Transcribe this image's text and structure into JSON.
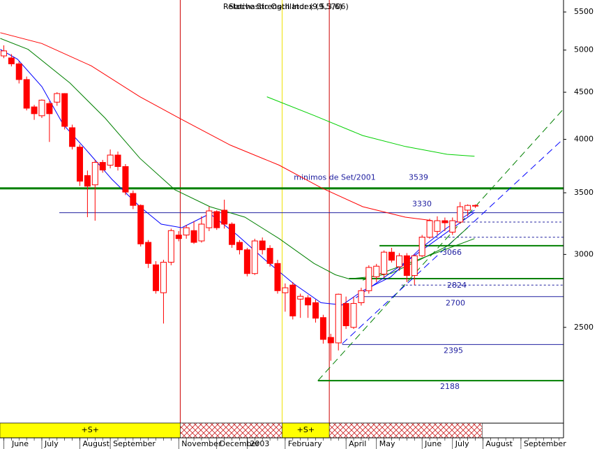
{
  "chart_data": {
    "type": "candlestick",
    "title": "Relative Strength Index (9.5706)",
    "subtitle": "Stochastic Oscillator (9.5,3,6)",
    "log_scale": true,
    "xlim": [
      -0.5,
      73.6
    ],
    "ylim": [
      1971,
      5667
    ],
    "yticks": [
      2500,
      3000,
      3500,
      4000,
      4500,
      5000,
      5500
    ],
    "xticks": [
      {
        "value": 0,
        "label": "June"
      },
      {
        "value": 5,
        "label": "July"
      },
      {
        "value": 10,
        "label": "August"
      },
      {
        "value": 14,
        "label": "September"
      },
      {
        "value": 23,
        "label": "November"
      },
      {
        "value": 28,
        "label": "December"
      },
      {
        "value": 32,
        "label": "2003"
      },
      {
        "value": 37,
        "label": "February"
      },
      {
        "value": 45,
        "label": "April"
      },
      {
        "value": 49,
        "label": "May"
      },
      {
        "value": 55,
        "label": "June"
      },
      {
        "value": 59,
        "label": "July"
      },
      {
        "value": 63,
        "label": "August"
      },
      {
        "value": 68,
        "label": "September"
      }
    ],
    "up_color": "#ffffff",
    "down_color": "#ff0000",
    "wick_color": "#ff0000",
    "candles": {
      "open": [
        4928,
        4903,
        4831,
        4645,
        4338,
        4243,
        4375,
        4390,
        4485,
        4118,
        3923,
        3654,
        3570,
        3776,
        3750,
        3846,
        3737,
        3494,
        3391,
        3092,
        2923,
        2726,
        2942,
        3149,
        3149,
        3184,
        3103,
        3207,
        3339,
        3351,
        3236,
        3092,
        3035,
        2860,
        3103,
        3046,
        2933,
        2726,
        2779,
        2683,
        2692,
        2659,
        2562,
        2438,
        2405,
        2654,
        2500,
        2659,
        2740,
        2837,
        2856,
        3017,
        2909,
        2990,
        2846,
        2990,
        3132,
        3178,
        3264,
        3172,
        3253,
        3351,
        3391
      ],
      "high": [
        5060,
        4950,
        4860,
        4680,
        4360,
        4420,
        4400,
        4500,
        4490,
        4150,
        3950,
        3700,
        3800,
        3800,
        3900,
        3880,
        3760,
        3520,
        3400,
        3110,
        2950,
        2960,
        3200,
        3180,
        3230,
        3260,
        3300,
        3380,
        3350,
        3440,
        3250,
        3110,
        3050,
        3120,
        3130,
        3070,
        2960,
        2790,
        2800,
        2720,
        2710,
        2680,
        2580,
        2460,
        2720,
        2700,
        2700,
        2760,
        2920,
        2930,
        3030,
        3050,
        3010,
        3010,
        3000,
        3150,
        3280,
        3300,
        3290,
        3290,
        3420,
        3400,
        3400
      ],
      "low": [
        4900,
        4800,
        4600,
        4300,
        4200,
        4220,
        3974,
        4350,
        4100,
        3900,
        3560,
        3293,
        3264,
        3680,
        3720,
        3700,
        3480,
        3360,
        3060,
        2900,
        2720,
        2524,
        2920,
        3100,
        3120,
        3080,
        3090,
        3180,
        3190,
        3200,
        3050,
        3000,
        2840,
        2850,
        3000,
        2910,
        2720,
        2600,
        2550,
        2560,
        2560,
        2530,
        2400,
        2300,
        2360,
        2490,
        2490,
        2640,
        2720,
        2800,
        2830,
        2940,
        2880,
        2800,
        2780,
        2980,
        3120,
        3150,
        3180,
        3150,
        3240,
        3300,
        3370
      ],
      "close": [
        4990,
        4831,
        4645,
        4324,
        4265,
        4412,
        4265,
        4485,
        4132,
        3929,
        3603,
        3558,
        3776,
        3705,
        3846,
        3737,
        3506,
        3391,
        3080,
        2933,
        2740,
        2942,
        3184,
        3121,
        3207,
        3092,
        3236,
        3345,
        3207,
        3236,
        3075,
        3035,
        2860,
        3103,
        3035,
        2933,
        2740,
        2760,
        2572,
        2702,
        2644,
        2558,
        2426,
        2405,
        2716,
        2510,
        2654,
        2740,
        2904,
        2913,
        3017,
        2957,
        2990,
        2846,
        2990,
        3132,
        3264,
        3264,
        3247,
        3264,
        3380,
        3391,
        3391
      ]
    },
    "lines": [
      {
        "color": "#ff0000",
        "x": [
          -0.46,
          5,
          11.5,
          17.9,
          23.4,
          29.8,
          36.2,
          41.7,
          47.2,
          52.8,
          56.4
        ],
        "values": [
          5222,
          5083,
          4807,
          4449,
          4204,
          3942,
          3750,
          3545,
          3380,
          3293,
          3264
        ]
      },
      {
        "color": "#008000",
        "x": [
          -0.46,
          3.2,
          8.7,
          13.3,
          17.9,
          22.5,
          27.1,
          31.7,
          36.2,
          40.8,
          43.6,
          45.4,
          48.2,
          50.9,
          54.6,
          58.3,
          61
        ],
        "values": [
          5148,
          5009,
          4605,
          4220,
          3815,
          3526,
          3380,
          3293,
          3121,
          2933,
          2851,
          2822,
          2837,
          2860,
          2957,
          3063,
          3207
        ]
      },
      {
        "color": "#0000ff",
        "x": [
          -0.46,
          1.8,
          5,
          7.8,
          10.6,
          14.2,
          17.9,
          20.7,
          23.4,
          27.1,
          30.7,
          34.4,
          38.1,
          41.7,
          44.5,
          47.2,
          50.9,
          54.6,
          58.3,
          61.9
        ],
        "values": [
          5009,
          4887,
          4564,
          4153,
          3916,
          3621,
          3380,
          3236,
          3207,
          3322,
          3149,
          2957,
          2789,
          2659,
          2644,
          2740,
          2837,
          3035,
          3207,
          3351
        ]
      },
      {
        "color": "#00d000",
        "x": [
          34.6,
          40.9,
          47.2,
          52.8,
          58.3,
          61.9
        ],
        "values": [
          4449,
          4243,
          4038,
          3929,
          3853,
          3834
        ]
      }
    ],
    "levels": [
      {
        "value": 3539,
        "from": -0.5,
        "color": "#008000",
        "width": 3,
        "note": "minimos de Set/2001"
      },
      {
        "value": 3330,
        "from": 7.3,
        "color": "#2020a0",
        "width": 1
      },
      {
        "value": 3066,
        "from": 49.4,
        "color": "#008000",
        "width": 2
      },
      {
        "value": 2824,
        "from": 45.4,
        "color": "#008000",
        "width": 2
      },
      {
        "value": 2700,
        "from": 46.8,
        "color": "#2020a0",
        "width": 1
      },
      {
        "value": 2395,
        "from": 44.5,
        "color": "#2020a0",
        "width": 1
      },
      {
        "value": 2188,
        "from": 41.3,
        "color": "#008000",
        "width": 2
      }
    ],
    "dashed_levels": [
      {
        "value": 3253,
        "from": 56,
        "color": "#2020a0"
      },
      {
        "value": 3132,
        "from": 54.6,
        "color": "#2020a0"
      },
      {
        "value": 2779,
        "from": 52.3,
        "color": "#2020a0"
      }
    ],
    "trendlines": [
      {
        "color": "#008000",
        "dashed": true,
        "x": [
          41.3,
          73.6
        ],
        "values": [
          2188,
          4316
        ]
      },
      {
        "color": "#0000ff",
        "dashed": true,
        "x": [
          44.5,
          73.6
        ],
        "values": [
          2400,
          4006
        ]
      },
      {
        "color": "#0000ff",
        "dashed": false,
        "x": [
          46.3,
          61.9
        ],
        "values": [
          2692,
          3333
        ]
      },
      {
        "color": "#008000",
        "dashed": false,
        "x": [
          47.2,
          61.9
        ],
        "values": [
          2813,
          3121
        ]
      }
    ],
    "markers": [
      {
        "x": 23.2,
        "color": "#cc0000"
      },
      {
        "x": 36.6,
        "color": "#f0e000"
      },
      {
        "x": 42.8,
        "color": "#cc0000"
      }
    ],
    "signals": [
      {
        "from": -0.5,
        "to": 23.2,
        "label": "+S+"
      },
      {
        "from": 23.2,
        "to": 36.6
      },
      {
        "from": 36.6,
        "to": 42.8,
        "label": "+S+"
      },
      {
        "from": 42.8,
        "to": 62.9
      }
    ]
  }
}
